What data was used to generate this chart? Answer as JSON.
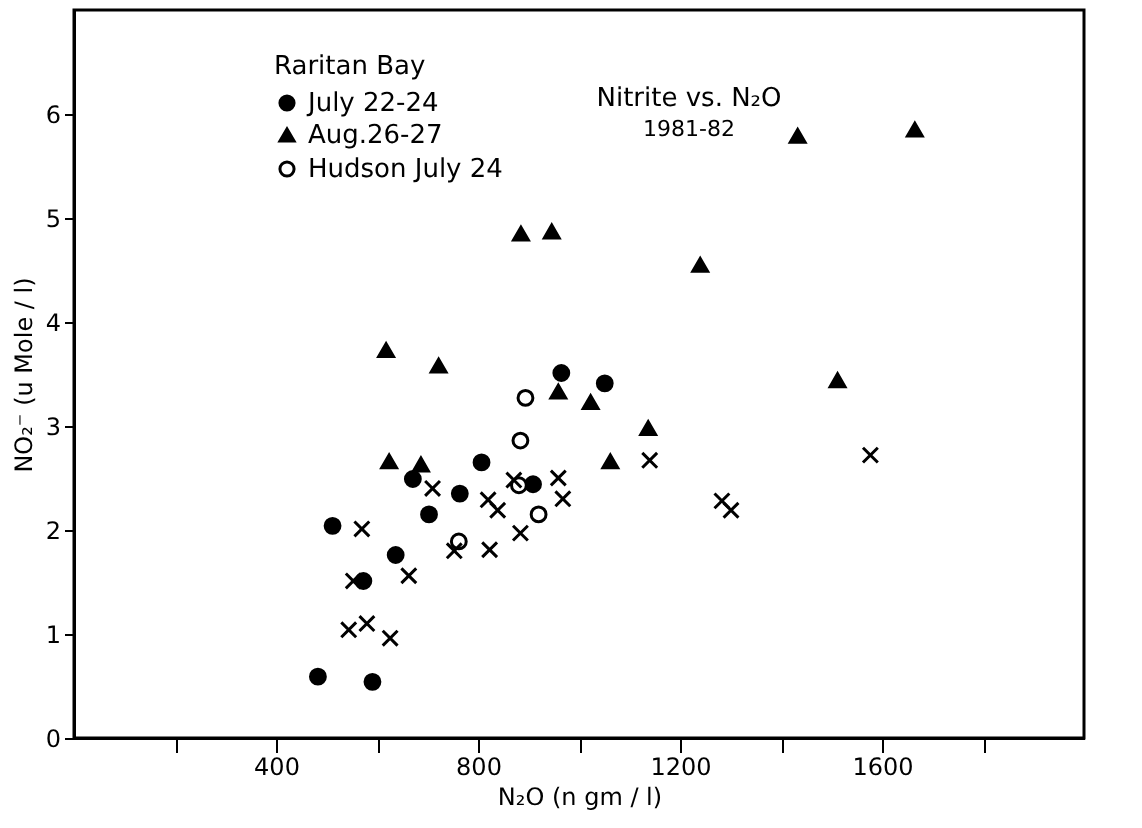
{
  "chart_data": {
    "type": "scatter",
    "title": "Nitrite vs. N₂O",
    "subtitle": "1981-82",
    "xlabel": "N₂O (n gm / l)",
    "ylabel": "NO₂⁻ (u Mole / l)",
    "legend_title": "Raritan Bay",
    "xlim": [
      0,
      2000
    ],
    "ylim": [
      0,
      7
    ],
    "xticks": [
      {
        "value": 200,
        "label": null
      },
      400,
      {
        "value": 600,
        "label": null
      },
      800,
      {
        "value": 1000,
        "label": null
      },
      1200,
      {
        "value": 1400,
        "label": null
      },
      1600,
      {
        "value": 1800,
        "label": null
      }
    ],
    "yticks": [
      0,
      1,
      2,
      3,
      4,
      5,
      6
    ],
    "grid": false,
    "legend": "top left",
    "series": [
      {
        "name": "July 22-24",
        "color": "#000000",
        "marker": "circle",
        "x": [
          965,
          1051,
          807,
          671,
          764,
          909,
          703,
          512,
          637,
          573,
          483,
          591
        ],
        "values": [
          3.51,
          3.41,
          2.65,
          2.49,
          2.35,
          2.44,
          2.15,
          2.04,
          1.76,
          1.51,
          0.59,
          0.54
        ]
      },
      {
        "name": "Aug.26-27",
        "color": "#000000",
        "marker": "triangle",
        "x": [
          1433,
          1665,
          885,
          946,
          1240,
          618,
          722,
          1512,
          959,
          1023,
          1137,
          624,
          687,
          1062
        ],
        "values": [
          5.79,
          5.85,
          4.85,
          4.87,
          4.55,
          3.73,
          3.58,
          3.44,
          3.33,
          3.23,
          2.98,
          2.66,
          2.63,
          2.66
        ]
      },
      {
        "name": "Hudson July 24",
        "color": "#ffffff",
        "marker": "circle",
        "x": [
          894,
          884,
          881,
          920,
          762
        ],
        "values": [
          3.27,
          2.86,
          2.43,
          2.15,
          1.89
        ]
      },
      {
        "color": "#000000",
        "marker": "cross",
        "x": [
          710,
          820,
          839,
          871,
          959,
          968,
          884,
          823,
          753,
          663,
          553,
          570,
          544,
          580,
          626,
          1140,
          1283,
          1301,
          1577
        ],
        "values": [
          2.4,
          2.29,
          2.19,
          2.48,
          2.5,
          2.3,
          1.97,
          1.81,
          1.8,
          1.56,
          1.51,
          2.01,
          1.04,
          1.1,
          0.96,
          2.67,
          2.28,
          2.19,
          2.72
        ]
      }
    ]
  }
}
